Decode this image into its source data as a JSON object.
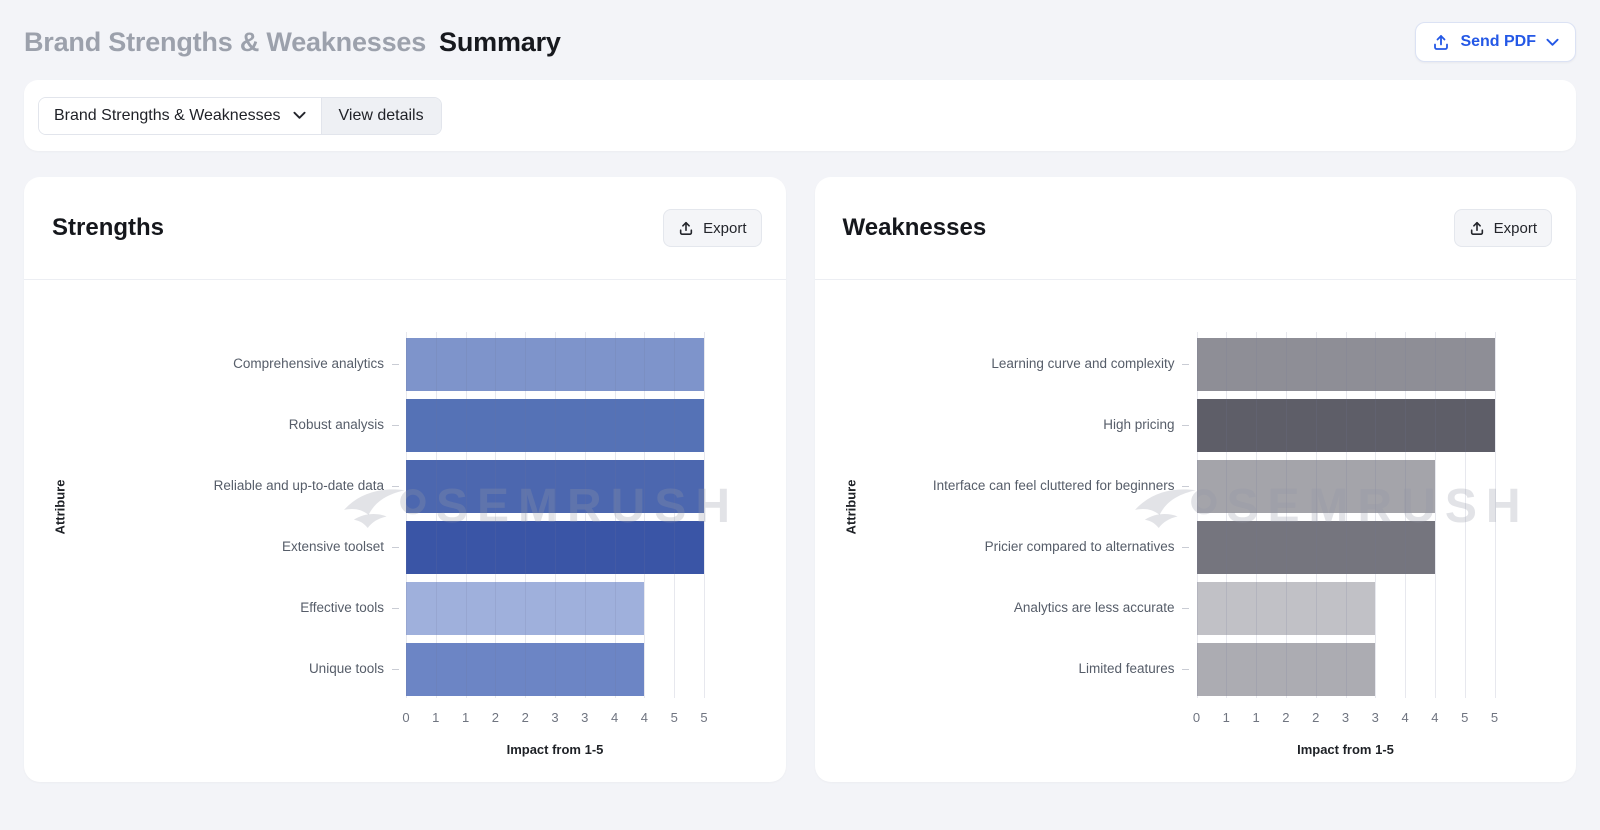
{
  "page": {
    "breadcrumb_title": "Brand Strengths & Weaknesses",
    "page_title": "Summary",
    "send_pdf": {
      "label": "Send PDF"
    }
  },
  "toolbar": {
    "report_dropdown": {
      "value": "Brand Strengths & Weaknesses"
    },
    "view_details": {
      "label": "View details"
    }
  },
  "watermark": {
    "brand": "SEMRUSH"
  },
  "colors": {
    "page_bg": "#F3F4F8",
    "accent_blue": "#2458E6",
    "grid_line": "#E3E6EE",
    "label_gray": "#565D69"
  },
  "chart_data": [
    {
      "type": "bar",
      "orientation": "horizontal",
      "panel_title": "Strengths",
      "export_label": "Export",
      "categories": [
        "Comprehensive analytics",
        "Robust analysis",
        "Reliable and up-to-date data",
        "Extensive toolset",
        "Effective tools",
        "Unique tools"
      ],
      "values": [
        5,
        5,
        5,
        5,
        4,
        4
      ],
      "bar_colors": [
        "#7E94CB",
        "#5572B6",
        "#4C67AF",
        "#3A55A6",
        "#9FB0DC",
        "#6C85C5"
      ],
      "xlabel": "Impact from 1-5",
      "ylabel": "Attribure",
      "xlim": [
        0,
        5
      ],
      "x_tick_labels": [
        "0",
        "1",
        "1",
        "2",
        "2",
        "3",
        "3",
        "4",
        "4",
        "5",
        "5"
      ],
      "grid": true,
      "legend": false
    },
    {
      "type": "bar",
      "orientation": "horizontal",
      "panel_title": "Weaknesses",
      "export_label": "Export",
      "categories": [
        "Learning curve and complexity",
        "High pricing",
        "Interface can feel cluttered for beginners",
        "Pricier compared to alternatives",
        "Analytics are less accurate",
        "Limited features"
      ],
      "values": [
        5,
        5,
        4,
        4,
        3,
        3
      ],
      "bar_colors": [
        "#8E8E96",
        "#5E5E68",
        "#A4A4AA",
        "#75757E",
        "#C1C1C6",
        "#ACACB2"
      ],
      "xlabel": "Impact from 1-5",
      "ylabel": "Attribure",
      "xlim": [
        0,
        5
      ],
      "x_tick_labels": [
        "0",
        "1",
        "1",
        "2",
        "2",
        "3",
        "3",
        "4",
        "4",
        "5",
        "5"
      ],
      "grid": true,
      "legend": false
    }
  ]
}
